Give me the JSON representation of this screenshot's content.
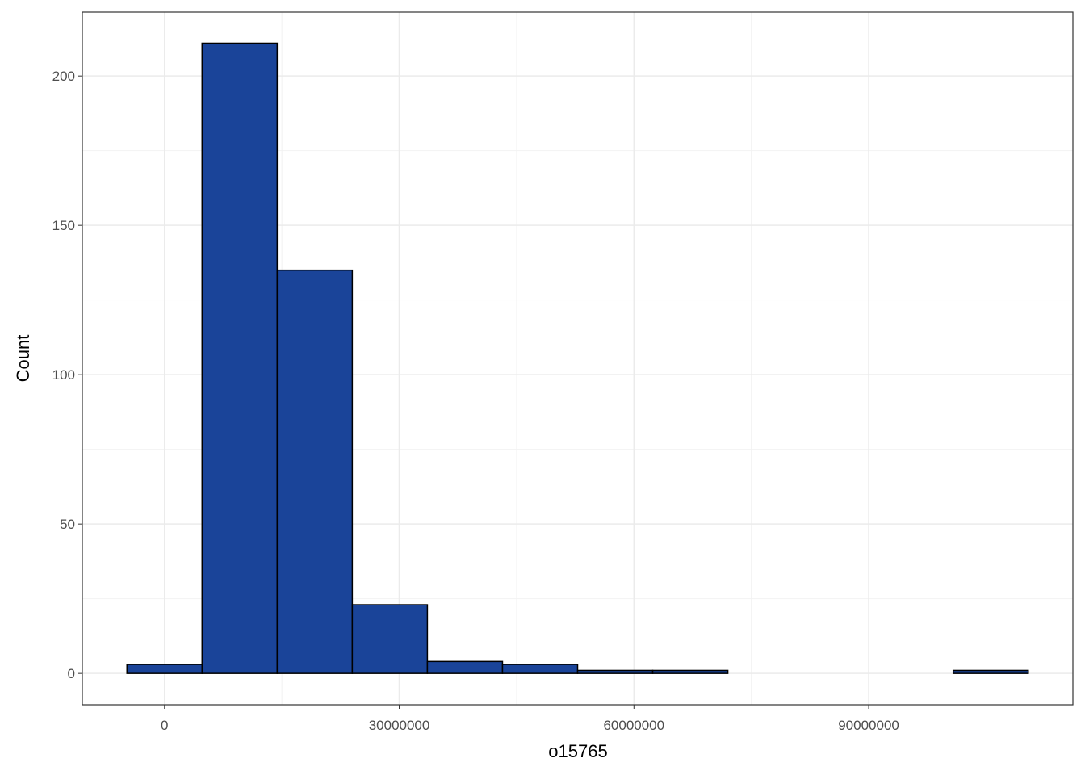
{
  "chart_data": {
    "type": "histogram",
    "x_label": "o15765",
    "y_label": "Count",
    "bins": [
      -4800000,
      4800000,
      14400000,
      24000000,
      33600000,
      43200000,
      52800000,
      62400000,
      72000000,
      81600000,
      91200000,
      100800000,
      110400000
    ],
    "values": [
      3,
      211,
      135,
      23,
      4,
      3,
      1,
      1,
      0,
      0,
      0,
      1
    ],
    "color": "#1a4499",
    "edge_color": "#000000",
    "xlim": [
      -10500000,
      116100000
    ],
    "xticks": [
      0,
      30000000,
      60000000,
      90000000
    ],
    "ylim": [
      -10.5,
      221.4
    ],
    "yticks": [
      0,
      50,
      100,
      150,
      200
    ],
    "grid": true
  }
}
